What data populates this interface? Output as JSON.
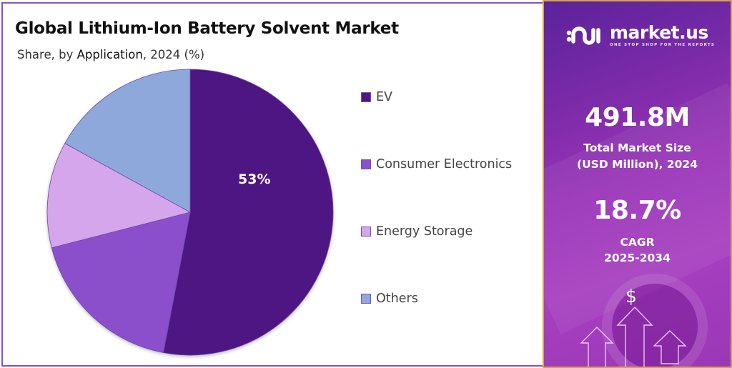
{
  "header": {
    "title": "Global Lithium-Ion Battery Solvent Market",
    "subtitle_prefix": "Share, by ",
    "subtitle_highlight": "Application",
    "subtitle_suffix": ", 2024 (%)"
  },
  "legend": [
    {
      "label": "EV",
      "color": "#4e1782"
    },
    {
      "label": "Consumer Electronics",
      "color": "#8b4fcb"
    },
    {
      "label": "Energy Storage",
      "color": "#d5a6ec"
    },
    {
      "label": "Others",
      "color": "#8fa8dc"
    }
  ],
  "pie_label": "53%",
  "sidebar": {
    "brand_name": "market.us",
    "brand_tagline": "ONE STOP SHOP FOR THE REPORTS",
    "market_size_value": "491.8M",
    "market_size_label_1": "Total Market Size",
    "market_size_label_2": "(USD Million), 2024",
    "cagr_value": "18.7%",
    "cagr_label_1": "CAGR",
    "cagr_label_2": "2025-2034",
    "dollar_icon": "$"
  },
  "chart_data": {
    "type": "pie",
    "title": "Global Lithium-Ion Battery Solvent Market",
    "subtitle": "Share, by Application, 2024 (%)",
    "categories": [
      "EV",
      "Consumer Electronics",
      "Energy Storage",
      "Others"
    ],
    "values": [
      53,
      18,
      12,
      17
    ],
    "colors": [
      "#4e1782",
      "#8b4fcb",
      "#d5a6ec",
      "#8fa8dc"
    ],
    "data_labels": {
      "EV": "53%"
    },
    "start_angle": "12 o'clock",
    "direction": "clockwise",
    "legend_position": "right",
    "annotations": {
      "total_market_size": "491.8M (USD Million), 2024",
      "cagr": "18.7% (2025-2034)"
    }
  }
}
